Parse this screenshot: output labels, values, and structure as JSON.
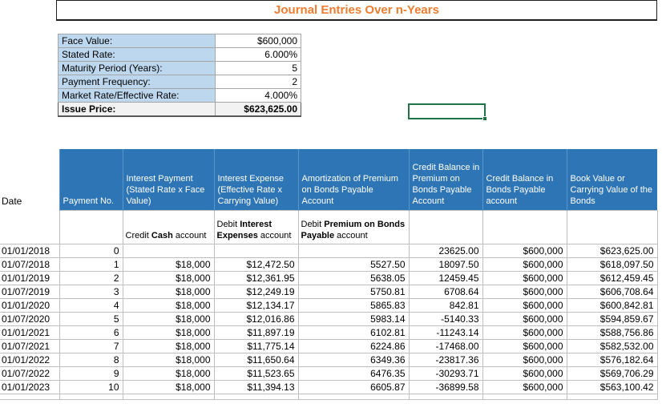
{
  "title": "Journal Entries Over n-Years",
  "colors": {
    "title_orange": "#ED7D31",
    "header_blue": "#2E75B6",
    "label_blue": "#BDD7EE",
    "issue_fill": "#F2F2F2",
    "selection_green": "#217346",
    "grid_gray": "#BFBFBF"
  },
  "info_panel": {
    "rows": [
      {
        "label": "Face Value:",
        "value": "$600,000",
        "emphasis": false
      },
      {
        "label": "Stated Rate:",
        "value": "6.000%",
        "emphasis": false
      },
      {
        "label": "Maturity Period (Years):",
        "value": "5",
        "emphasis": false
      },
      {
        "label": "Payment Frequency:",
        "value": "2",
        "emphasis": false
      },
      {
        "label": "Market Rate/Effective Rate:",
        "value": "4.000%",
        "emphasis": false
      },
      {
        "label": "Issue Price:",
        "value": "$623,625.00",
        "emphasis": true
      }
    ]
  },
  "table": {
    "date_header": "Date",
    "headers": [
      "Payment No.",
      "Interest Payment (Stated Rate x Face Value)",
      "Interest Expense (Effective Rate x Carrying Value)",
      "Amortization of Premium on Bonds Payable Account",
      "Credit Balance in Premium on Bonds Payable Account",
      "Credit Balance in Bonds Payable account",
      "Book Value or Carrying Value of the Bonds"
    ],
    "sub_headers": [
      {
        "pre": "Credit ",
        "bold": "Cash",
        "post": " account"
      },
      {
        "pre": "Debit ",
        "bold": "Interest Expenses",
        "post": " account"
      },
      {
        "pre": "Debit ",
        "bold": "Premium on Bonds Payable",
        "post": " account"
      }
    ],
    "rows": [
      [
        "01/01/2018",
        "0",
        "",
        "",
        "",
        "23625.00",
        "$600,000",
        "$623,625.00"
      ],
      [
        "01/07/2018",
        "1",
        "$18,000",
        "$12,472.50",
        "5527.50",
        "18097.50",
        "$600,000",
        "$618,097.50"
      ],
      [
        "01/01/2019",
        "2",
        "$18,000",
        "$12,361.95",
        "5638.05",
        "12459.45",
        "$600,000",
        "$612,459.45"
      ],
      [
        "01/07/2019",
        "3",
        "$18,000",
        "$12,249.19",
        "5750.81",
        "6708.64",
        "$600,000",
        "$606,708.64"
      ],
      [
        "01/01/2020",
        "4",
        "$18,000",
        "$12,134.17",
        "5865.83",
        "842.81",
        "$600,000",
        "$600,842.81"
      ],
      [
        "01/07/2020",
        "5",
        "$18,000",
        "$12,016.86",
        "5983.14",
        "-5140.33",
        "$600,000",
        "$594,859.67"
      ],
      [
        "01/01/2021",
        "6",
        "$18,000",
        "$11,897.19",
        "6102.81",
        "-11243.14",
        "$600,000",
        "$588,756.86"
      ],
      [
        "01/07/2021",
        "7",
        "$18,000",
        "$11,775.14",
        "6224.86",
        "-17468.00",
        "$600,000",
        "$582,532.00"
      ],
      [
        "01/01/2022",
        "8",
        "$18,000",
        "$11,650.64",
        "6349.36",
        "-23817.36",
        "$600,000",
        "$576,182.64"
      ],
      [
        "01/07/2022",
        "9",
        "$18,000",
        "$11,523.65",
        "6476.35",
        "-30293.71",
        "$600,000",
        "$569,706.29"
      ],
      [
        "01/01/2023",
        "10",
        "$18,000",
        "$11,394.13",
        "6605.87",
        "-36899.58",
        "$600,000",
        "$563,100.42"
      ]
    ]
  }
}
